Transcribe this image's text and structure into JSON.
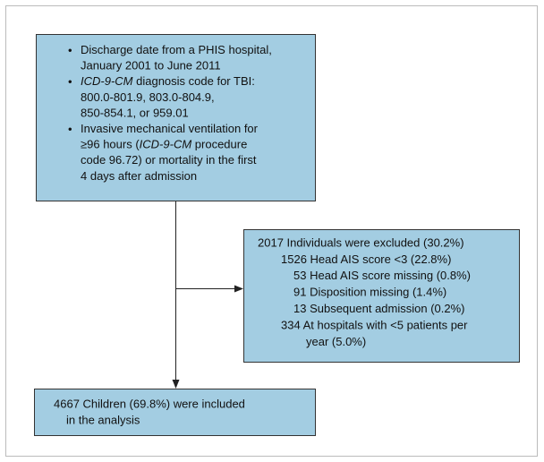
{
  "top_box": {
    "bullets": [
      [
        [
          "Discharge date from a PHIS hospital,"
        ],
        [
          "January 2001 to June 2011"
        ]
      ],
      [
        [
          {
            "text": "ICD-9-CM",
            "italic": true
          },
          " diagnosis code for TBI:"
        ],
        [
          "800.0-801.9, 803.0-804.9,"
        ],
        [
          "850-854.1, or 959.01"
        ]
      ],
      [
        [
          "Invasive mechanical ventilation for"
        ],
        [
          "≥96 hours (",
          {
            "text": "ICD-9-CM",
            "italic": true
          },
          " procedure"
        ],
        [
          "code 96.72) or mortality in the first"
        ],
        [
          "4 days after admission"
        ]
      ]
    ],
    "bullet": "•"
  },
  "excluded_box": {
    "lines": [
      {
        "text": "2017 Individuals were excluded (30.2%)",
        "level": 0
      },
      {
        "text": "1526 Head AIS score <3 (22.8%)",
        "level": 1
      },
      {
        "text": "53 Head AIS score missing (0.8%)",
        "level": 2
      },
      {
        "text": "91 Disposition missing (1.4%)",
        "level": 2
      },
      {
        "text": "13 Subsequent admission (0.2%)",
        "level": 2
      },
      {
        "text": "334 At hospitals with <5 patients per",
        "level": 1
      },
      {
        "text": "year (5.0%)",
        "level": 3
      }
    ]
  },
  "included_box": {
    "lines": [
      "4667 Children (69.8%) were included",
      "in the analysis"
    ]
  }
}
